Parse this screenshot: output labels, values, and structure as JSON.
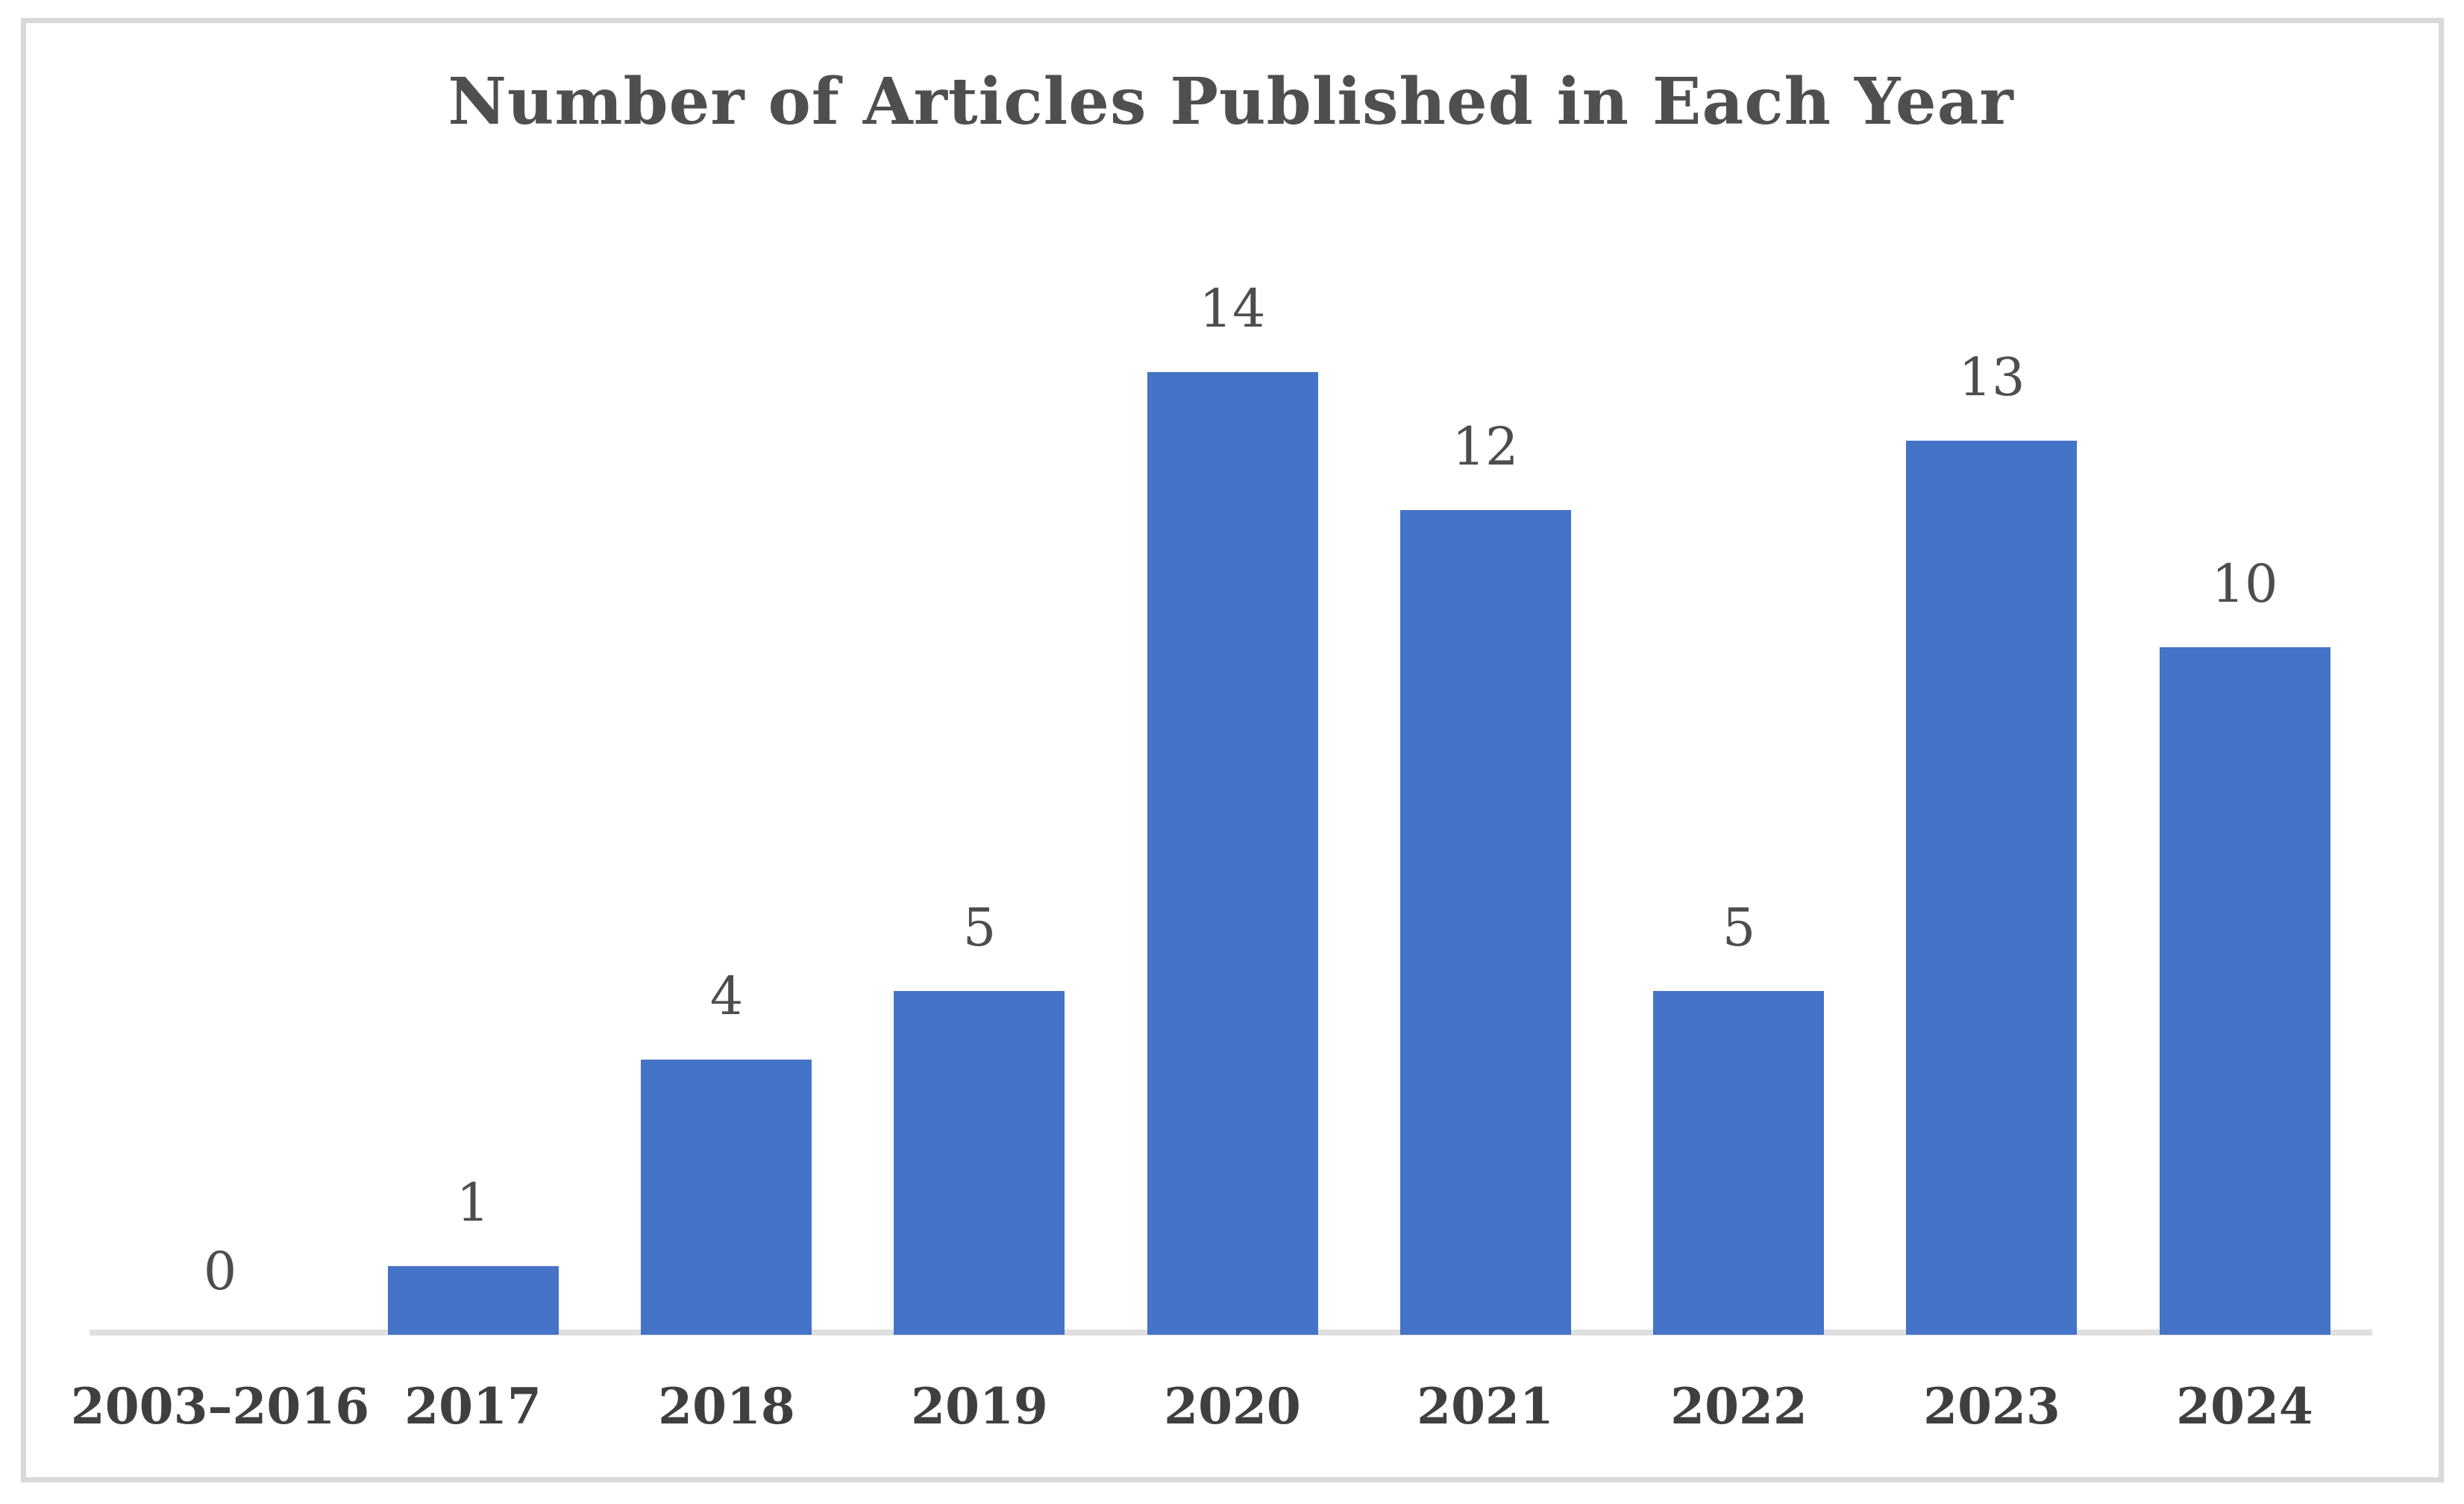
{
  "figure": {
    "background_color": "#ffffff",
    "frame_border_color": "#d9d9d9"
  },
  "chart_data": {
    "type": "bar",
    "title": "Number of Articles Published in Each Year",
    "categories": [
      "2003–2016",
      "2017",
      "2018",
      "2019",
      "2020",
      "2021",
      "2022",
      "2023",
      "2024"
    ],
    "values": [
      0,
      1,
      4,
      5,
      14,
      12,
      5,
      13,
      10
    ],
    "xlabel": "",
    "ylabel": "",
    "ylim": [
      0,
      14
    ],
    "grid": false,
    "legend_position": "none",
    "data_labels": true,
    "bar_color": "#4573C7",
    "axis_line_color": "#e0e0e0",
    "title_color": "#4f4f4f",
    "value_label_color": "#4d4d4d",
    "category_label_color": "#3f3f3f"
  }
}
